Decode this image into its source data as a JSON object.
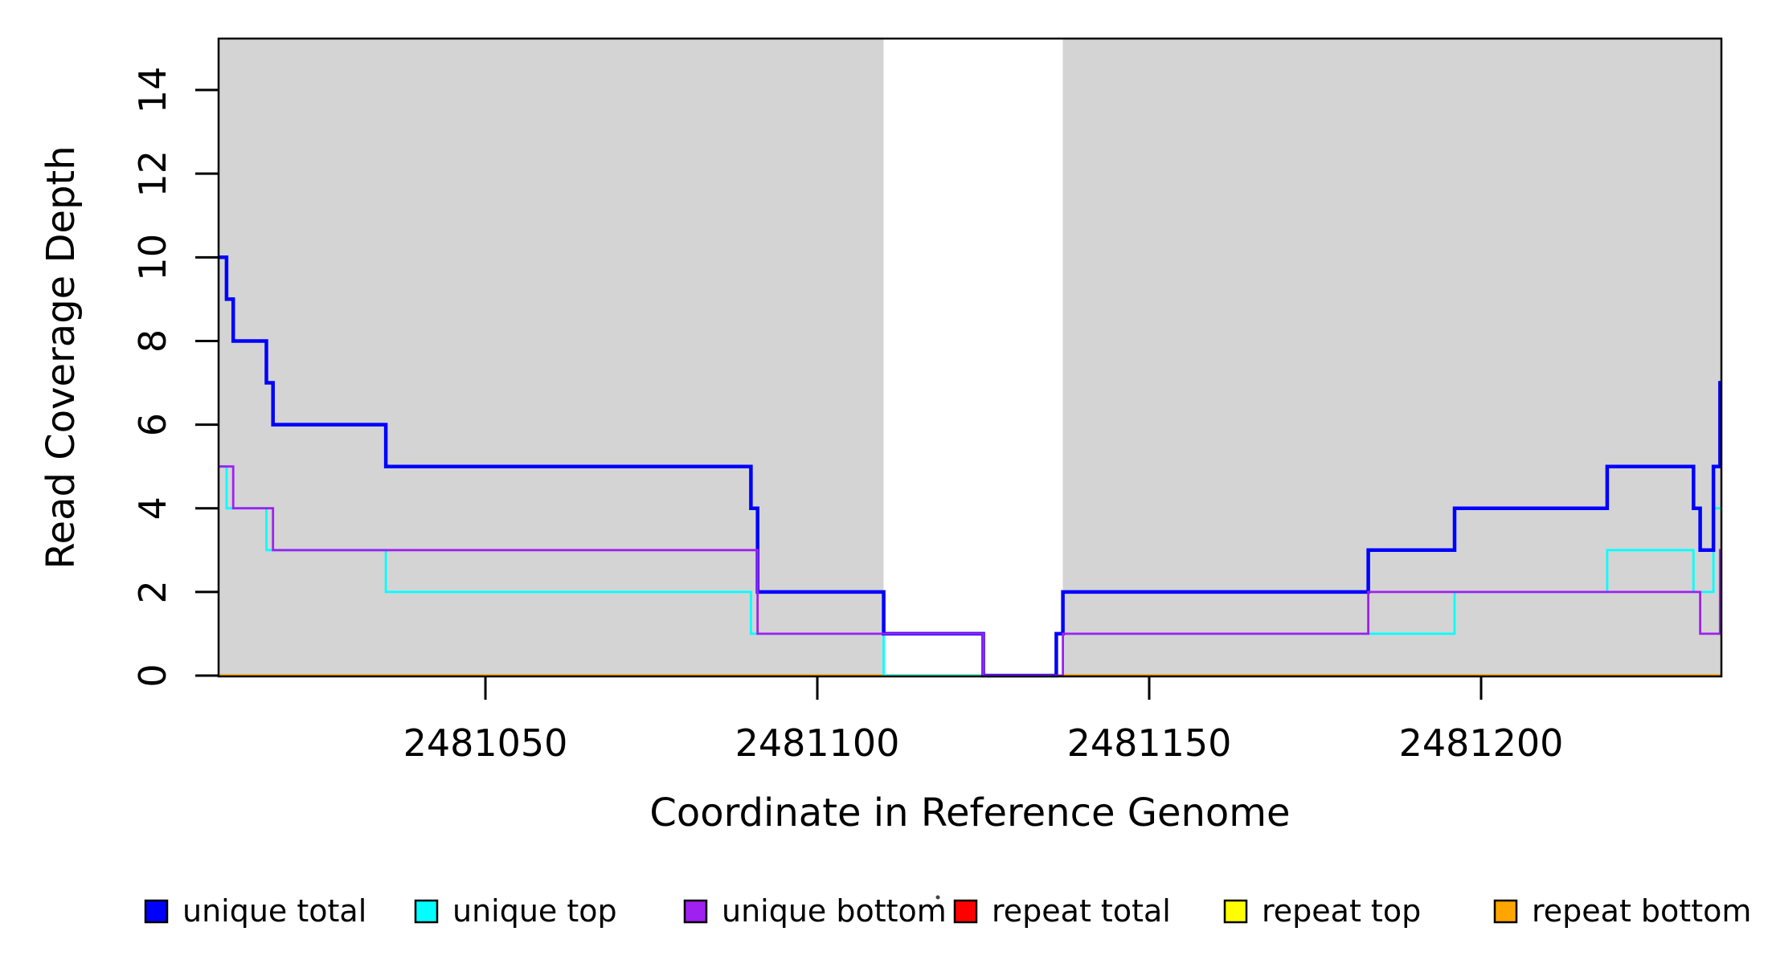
{
  "x_axis": {
    "label": "Coordinate in Reference Genome",
    "tick_labels": [
      "2481050",
      "2481100",
      "2481150",
      "2481200"
    ]
  },
  "y_axis": {
    "label": "Read Coverage Depth",
    "tick_labels": [
      "0",
      "2",
      "4",
      "6",
      "8",
      "10",
      "12",
      "14"
    ]
  },
  "legend": {
    "items": [
      {
        "label": "unique total",
        "color": "#0000ff"
      },
      {
        "label": "unique top",
        "color": "#00ffff"
      },
      {
        "label": "unique bottom",
        "color": "#a020f0"
      },
      {
        "label": "repeat total",
        "color": "#ff0000"
      },
      {
        "label": "repeat top",
        "color": "#ffff00"
      },
      {
        "label": "repeat bottom",
        "color": "#ffa500"
      }
    ]
  },
  "chart_data": {
    "type": "line",
    "step": "hv",
    "xlabel": "Coordinate in Reference Genome",
    "ylabel": "Read Coverage Depth",
    "xlim": [
      2481009.8,
      2481236.2
    ],
    "ylim": [
      0,
      15.23
    ],
    "x_ticks": [
      2481050,
      2481100,
      2481150,
      2481200
    ],
    "y_ticks": [
      0,
      2,
      4,
      6,
      8,
      10,
      12,
      14
    ],
    "grid": false,
    "legend_position": "bottom",
    "shaded_regions": {
      "color": "#d4d4d4",
      "ranges": [
        [
          2481009.8,
          2481110
        ],
        [
          2481137,
          2481236.2
        ]
      ]
    },
    "series": [
      {
        "name": "unique total",
        "color": "#0000ff",
        "line_width": 4.5,
        "start_depth": 10,
        "steps": [
          [
            2481011,
            9
          ],
          [
            2481012,
            8
          ],
          [
            2481017,
            7
          ],
          [
            2481018,
            6
          ],
          [
            2481035,
            5
          ],
          [
            2481090,
            4
          ],
          [
            2481091,
            2
          ],
          [
            2481110,
            1
          ],
          [
            2481125,
            0
          ],
          [
            2481136,
            1
          ],
          [
            2481137,
            2
          ],
          [
            2481183,
            3
          ],
          [
            2481196,
            4
          ],
          [
            2481219,
            5
          ],
          [
            2481232,
            4
          ],
          [
            2481233,
            3
          ],
          [
            2481235,
            5
          ],
          [
            2481236,
            7
          ]
        ]
      },
      {
        "name": "unique top",
        "color": "#00ffff",
        "line_width": 2.8,
        "start_depth": 5,
        "steps": [
          [
            2481011,
            4
          ],
          [
            2481017,
            3
          ],
          [
            2481035,
            2
          ],
          [
            2481090,
            1
          ],
          [
            2481110,
            0
          ],
          [
            2481136,
            1
          ],
          [
            2481196,
            2
          ],
          [
            2481219,
            3
          ],
          [
            2481232,
            2
          ],
          [
            2481235,
            4
          ]
        ]
      },
      {
        "name": "unique bottom",
        "color": "#a020f0",
        "line_width": 2.8,
        "start_depth": 5,
        "steps": [
          [
            2481012,
            4
          ],
          [
            2481018,
            3
          ],
          [
            2481091,
            1
          ],
          [
            2481125,
            0
          ],
          [
            2481137,
            1
          ],
          [
            2481183,
            2
          ],
          [
            2481233,
            1
          ],
          [
            2481236,
            3
          ]
        ]
      },
      {
        "name": "repeat total",
        "color": "#ff0000",
        "line_width": 3,
        "start_depth": 0,
        "steps": []
      },
      {
        "name": "repeat top",
        "color": "#ffff00",
        "line_width": 3,
        "start_depth": 0,
        "steps": []
      },
      {
        "name": "repeat bottom",
        "color": "#ffa500",
        "line_width": 3.5,
        "start_depth": 0,
        "steps": []
      }
    ],
    "draw_order": [
      "repeat top",
      "repeat total",
      "repeat bottom",
      "unique top",
      "unique total",
      "unique bottom"
    ]
  }
}
